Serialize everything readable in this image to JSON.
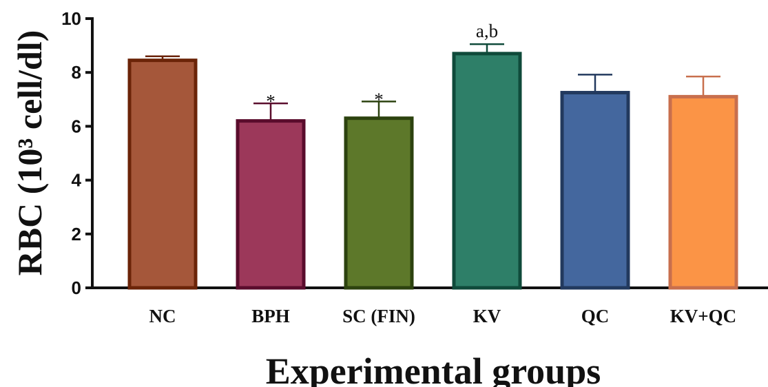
{
  "chart_data": {
    "type": "bar",
    "title": "",
    "xlabel": "Experimental groups",
    "ylabel": "RBC (10³ cell/dl)",
    "ylim": [
      0,
      10
    ],
    "yticks": [
      "0",
      "2",
      "4",
      "6",
      "8",
      "10"
    ],
    "grid": false,
    "categories": [
      "NC",
      "BPH",
      "SC (FIN)",
      "KV",
      "QC",
      "KV+QC"
    ],
    "values": [
      8.45,
      6.2,
      6.3,
      8.7,
      7.25,
      7.1
    ],
    "errors": [
      0.15,
      0.65,
      0.62,
      0.35,
      0.67,
      0.75
    ],
    "annotations": [
      "",
      "*",
      "*",
      "a,b",
      "",
      ""
    ],
    "fill_colors": [
      "#A5573A",
      "#9C385A",
      "#5D782A",
      "#2E7F68",
      "#44679E",
      "#FB9446"
    ],
    "edge_colors": [
      "#6B2408",
      "#5A0C2C",
      "#2C420F",
      "#0F4A3A",
      "#22395E",
      "#C86F4D"
    ]
  }
}
